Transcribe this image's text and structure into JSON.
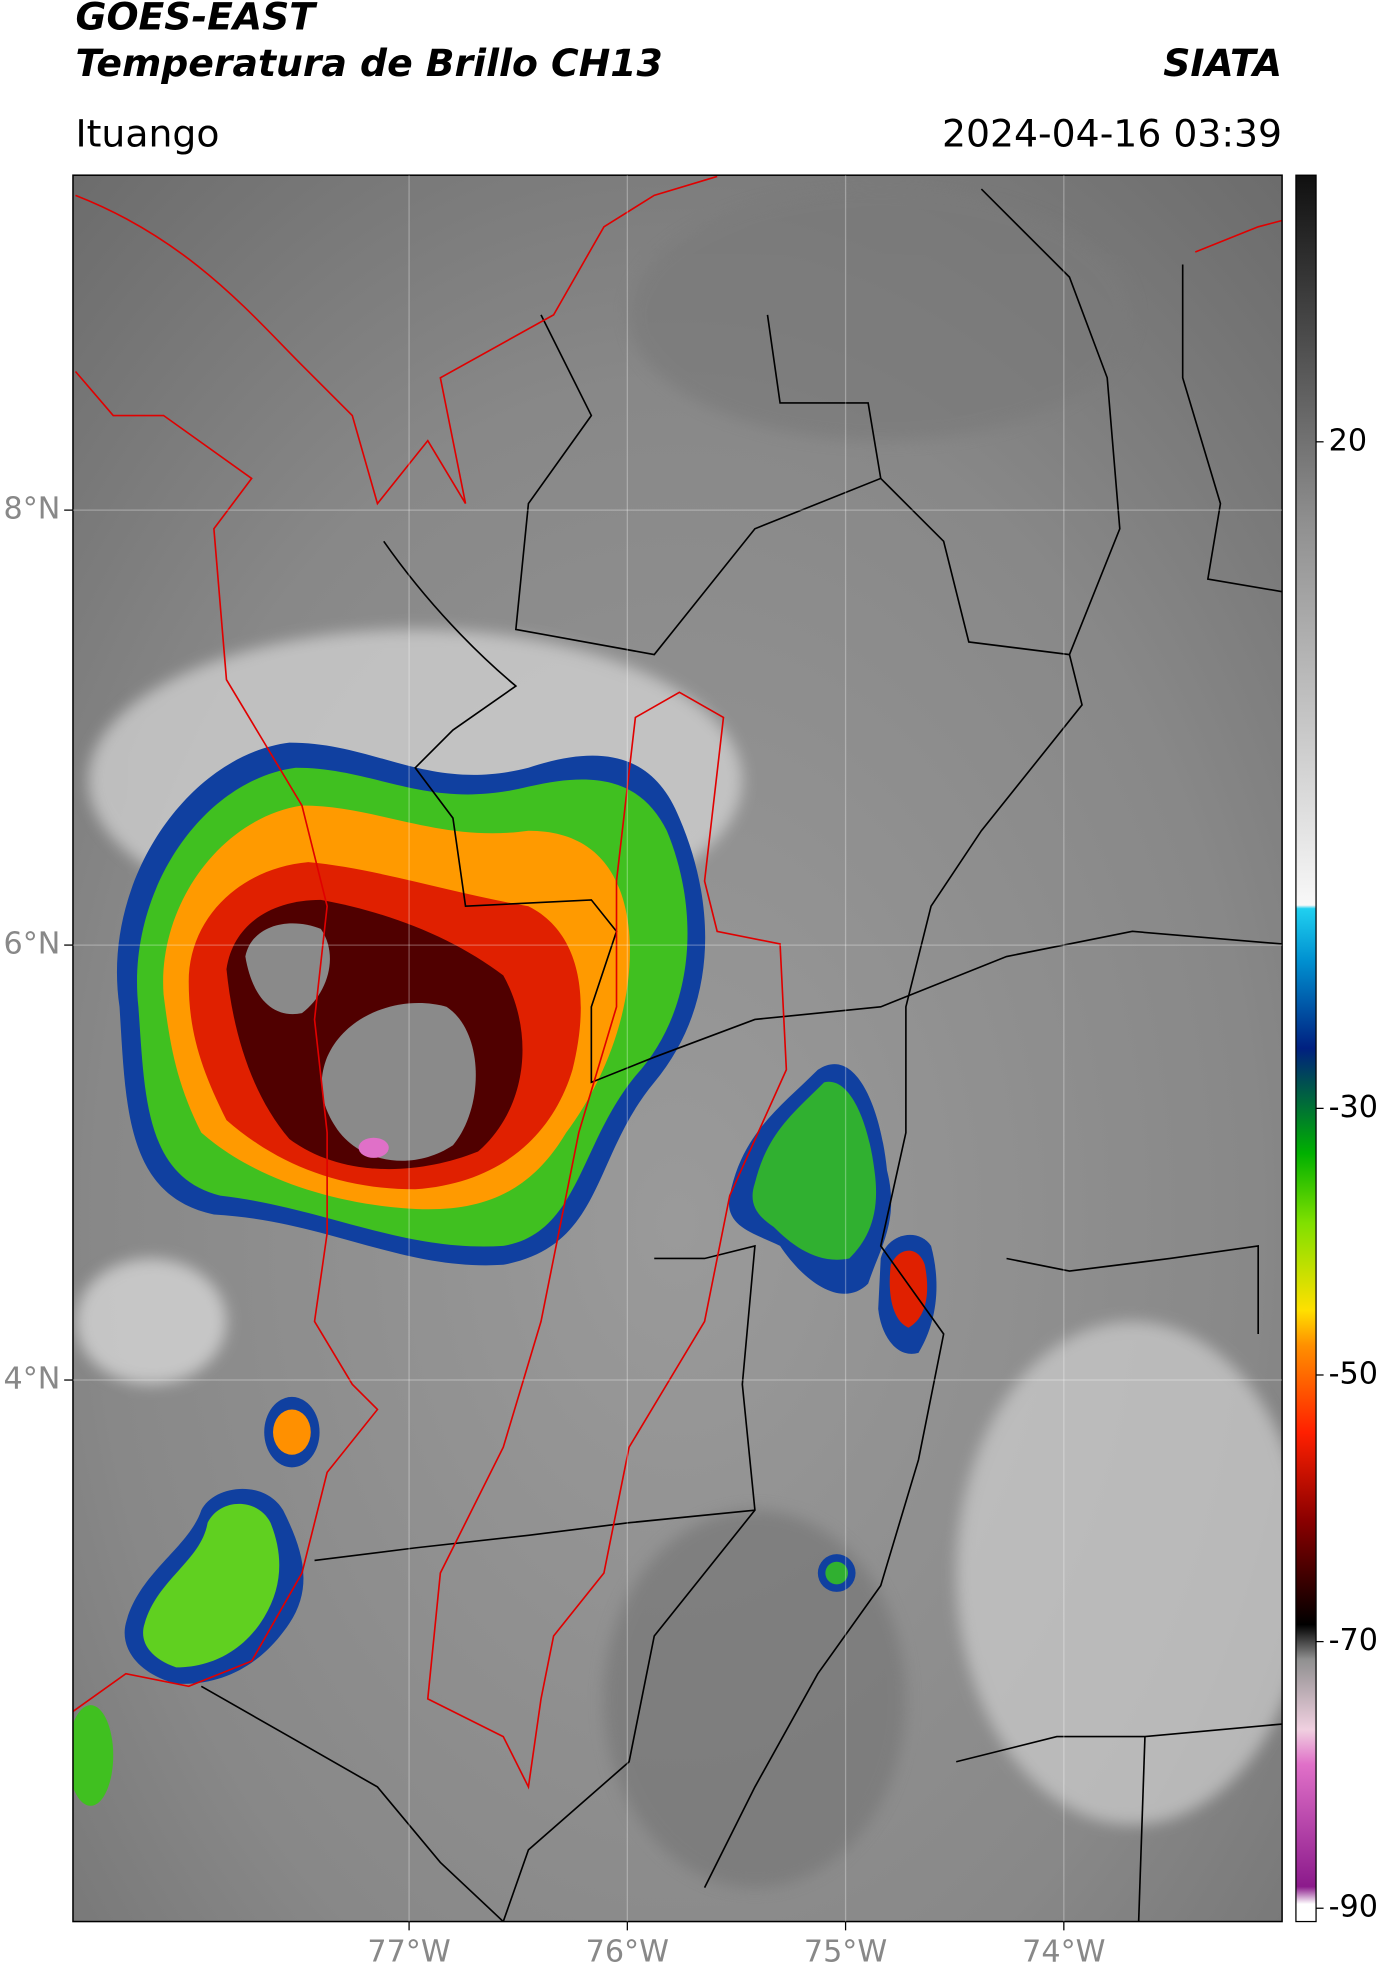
{
  "header": {
    "title": "GOES-EAST",
    "subtitle": "Temperatura de Brillo CH13",
    "org": "SIATA",
    "location": "Ituango",
    "datetime": "2024-04-16 03:39"
  },
  "map": {
    "xlim": [
      -78.54,
      -73.0
    ],
    "ylim": [
      1.51,
      9.54
    ],
    "xticks": [
      {
        "value": -77,
        "label": "77°W"
      },
      {
        "value": -76,
        "label": "76°W"
      },
      {
        "value": -75,
        "label": "75°W"
      },
      {
        "value": -74,
        "label": "74°W"
      }
    ],
    "yticks": [
      {
        "value": 8,
        "label": "8°N"
      },
      {
        "value": 6,
        "label": "6°N"
      },
      {
        "value": 4,
        "label": "4°N"
      }
    ],
    "grid": true
  },
  "colorbar": {
    "lim": [
      -91,
      40
    ],
    "ticks": [
      20,
      -30,
      -50,
      -70,
      -90
    ]
  }
}
